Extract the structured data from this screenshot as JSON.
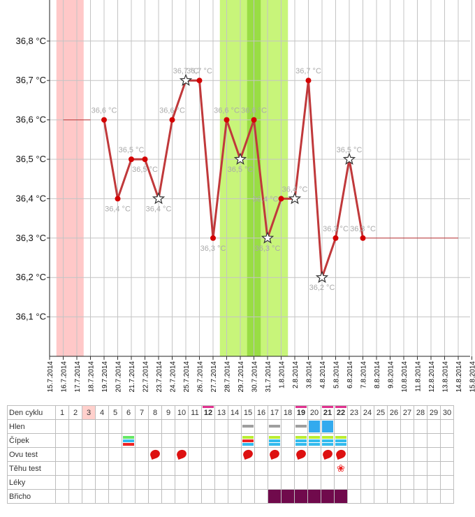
{
  "chart_data": {
    "type": "line",
    "ylim": [
      36.0,
      36.9
    ],
    "y_ticks": [
      "36,1 °C",
      "36,2 °C",
      "36,3 °C",
      "36,4 °C",
      "36,5 °C",
      "36,6 °C",
      "36,7 °C",
      "36,8 °C"
    ],
    "x_ticks": [
      "15.7.2014",
      "16.7.2014",
      "17.7.2014",
      "18.7.2014",
      "19.7.2014",
      "20.7.2014",
      "21.7.2014",
      "22.7.2014",
      "23.7.2014",
      "24.7.2014",
      "25.7.2014",
      "26.7.2014",
      "27.7.2014",
      "28.7.2014",
      "29.7.2014",
      "30.7.2014",
      "31.7.2014",
      "1.8.2014",
      "2.8.2014",
      "3.8.2014",
      "4.8.2014",
      "5.8.2014",
      "6.8.2014",
      "7.8.2014",
      "8.8.2014",
      "9.8.2014",
      "10.8.2014",
      "11.8.2014",
      "12.8.2014",
      "13.8.2014",
      "14.8.2014",
      "15.8.2014"
    ],
    "grid": true,
    "menstruation_band": [
      "16.7.2014",
      "17.7.2014"
    ],
    "fertile_band": [
      "28.7.2014",
      "1.8.2014"
    ],
    "ovulation_band": [
      "30.7.2014"
    ],
    "baseline_before": {
      "from": "16.7.2014",
      "to": "18.7.2014",
      "value": 36.6
    },
    "baseline_after": {
      "from": "7.8.2014",
      "to": "14.8.2014",
      "value": 36.3
    },
    "series": [
      {
        "x": [
          "19.7.2014",
          "20.7.2014",
          "21.7.2014",
          "22.7.2014",
          "23.7.2014",
          "24.7.2014",
          "25.7.2014",
          "26.7.2014",
          "27.7.2014",
          "28.7.2014",
          "29.7.2014",
          "30.7.2014",
          "31.7.2014",
          "1.8.2014",
          "2.8.2014",
          "3.8.2014",
          "4.8.2014",
          "5.8.2014",
          "6.8.2014",
          "7.8.2014"
        ],
        "values": [
          36.6,
          36.4,
          36.5,
          36.5,
          36.4,
          36.6,
          36.7,
          36.7,
          36.3,
          36.6,
          36.5,
          36.6,
          36.3,
          36.4,
          36.4,
          36.7,
          36.2,
          36.3,
          36.5,
          36.3
        ],
        "labels": [
          "36,6 °C",
          "36,4 °C",
          "36,5 °C",
          "36,5 °C",
          "36,4 °C",
          "36,6 °C",
          "36,7 °C",
          "36,7 °C",
          "36,3 °C",
          "36,6 °C",
          "36,5 °C",
          "36,6 °C",
          "36,3 °C",
          "36,4 °C",
          "36,4 °C",
          "36,7 °C",
          "36,2 °C",
          "36,3 °C",
          "36,5 °C",
          "36,3 °C"
        ],
        "label_pos": [
          "above",
          "below",
          "above",
          "below",
          "below",
          "above",
          "above",
          "above",
          "below",
          "above",
          "below",
          "above",
          "below",
          "left",
          "above",
          "above",
          "below",
          "above",
          "above",
          "above"
        ],
        "marker": [
          "dot",
          "dot",
          "dot",
          "dot",
          "star",
          "dot",
          "star",
          "dot",
          "dot",
          "dot",
          "star",
          "dot",
          "star",
          "dot",
          "star",
          "dot",
          "star",
          "dot",
          "star",
          "dot"
        ]
      }
    ],
    "colors": {
      "line": "#c0393b",
      "dot": "#d40000",
      "menstruation": "#ffc8c8",
      "fertile": "#c8f57a",
      "ovulation": "#99dd44"
    }
  },
  "cycle_table": {
    "row_labels": [
      "Den cyklu",
      "Hlen",
      "Čípek",
      "Ovu test",
      "Těhu test",
      "Léky",
      "Břicho"
    ],
    "days": [
      "1",
      "2",
      "3",
      "4",
      "5",
      "6",
      "7",
      "8",
      "9",
      "10",
      "11",
      "12",
      "13",
      "14",
      "15",
      "16",
      "17",
      "18",
      "19",
      "20",
      "21",
      "22",
      "23",
      "24",
      "25",
      "26",
      "27",
      "28",
      "29",
      "30"
    ],
    "bold_days": [
      "12",
      "19",
      "21",
      "22"
    ],
    "highlight_day": "3",
    "pink_bar_days": [
      "12",
      "19",
      "21",
      "22"
    ],
    "hlen": {
      "15": "gray",
      "17": "gray",
      "19": "gray",
      "20": "blue",
      "21": "blue"
    },
    "cipek": {
      "6": [
        "#66e866",
        "#33bbee",
        "#ee2222"
      ],
      "15": [
        "#bbee33",
        "#ee2222",
        "#33bbee"
      ],
      "17": [
        "#bbee33",
        "#33bbee",
        "#33bbee"
      ],
      "19": [
        "#bbee33",
        "#33bbee",
        "#33bbee"
      ],
      "20": [
        "#bbee33",
        "#33bbee",
        "#33bbee"
      ],
      "21": [
        "#bbee33",
        "#33bbee",
        "#33bbee"
      ],
      "22": [
        "#bbee33",
        "#33bbee",
        "#33bbee"
      ]
    },
    "ovu_days": [
      "8",
      "10",
      "15",
      "17",
      "19",
      "21",
      "22"
    ],
    "tehu_days": [
      "22"
    ],
    "bricho_days": [
      "17",
      "18",
      "19",
      "20",
      "21",
      "22"
    ],
    "icons": {
      "ovu": "drop-icon",
      "tehu": "flower-icon"
    },
    "colors": {
      "gray": "#9e9e9e",
      "blue": "#33aaee",
      "pink": "#e0338f",
      "bricho": "#700a4c",
      "ovu": "#dd1111",
      "tehu": "#ee2222",
      "highlight": "#ffd0cc"
    }
  }
}
